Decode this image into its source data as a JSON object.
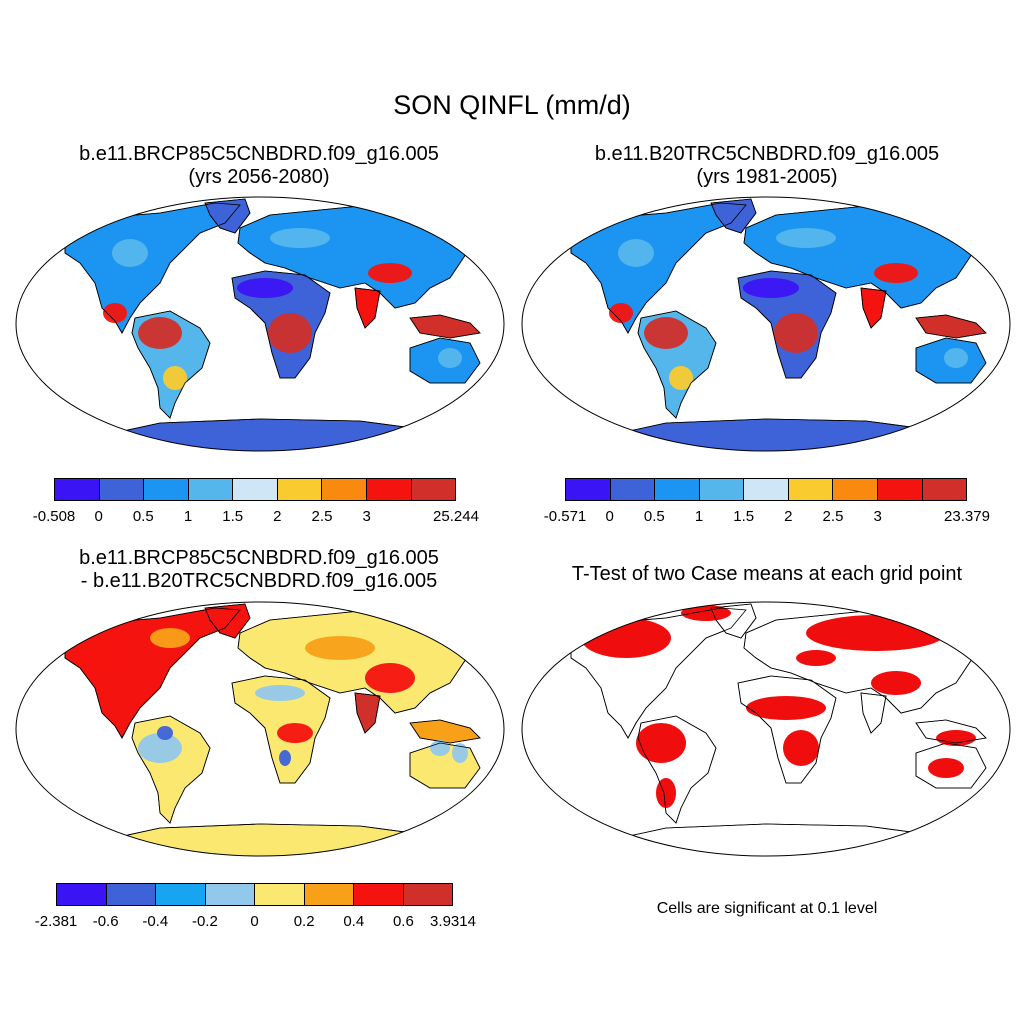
{
  "main_title": "SON QINFL (mm/d)",
  "panels": [
    {
      "title_line1": "b.e11.BRCP85C5CNBDRD.f09_g16.005",
      "title_line2": "(yrs 2056-2080)",
      "colorbar": {
        "colors": [
          "#3b14f5",
          "#3e62d8",
          "#1b95f1",
          "#55b6ec",
          "#cfe6f7",
          "#f9cb2f",
          "#fa8a0f",
          "#f5130f",
          "#d12f2a"
        ],
        "labels": [
          "-0.508",
          "0",
          "0.5",
          "1",
          "1.5",
          "2",
          "2.5",
          "3",
          "25.244"
        ]
      }
    },
    {
      "title_line1": "b.e11.B20TRC5CNBDRD.f09_g16.005",
      "title_line2": "(yrs 1981-2005)",
      "colorbar": {
        "colors": [
          "#3b14f5",
          "#3e62d8",
          "#1b95f1",
          "#55b6ec",
          "#cfe6f7",
          "#f9cb2f",
          "#fa8a0f",
          "#f5130f",
          "#d12f2a"
        ],
        "labels": [
          "-0.571",
          "0",
          "0.5",
          "1",
          "1.5",
          "2",
          "2.5",
          "3",
          "23.379"
        ]
      }
    },
    {
      "title_line1": "b.e11.BRCP85C5CNBDRD.f09_g16.005",
      "title_line2": "- b.e11.B20TRC5CNBDRD.f09_g16.005",
      "colorbar": {
        "colors": [
          "#3b14f5",
          "#3e62d8",
          "#17a5f2",
          "#92c8ec",
          "#fbe871",
          "#f8a118",
          "#f5130f",
          "#d12f2a"
        ],
        "labels": [
          "-2.381",
          "-0.6",
          "-0.4",
          "-0.2",
          "0",
          "0.2",
          "0.4",
          "0.6",
          "3.9314"
        ]
      }
    },
    {
      "title_line1": "T-Test of two Case means at each grid point",
      "note": "Cells are significant at 0.1 level",
      "significant_color": "#ee0000"
    }
  ]
}
